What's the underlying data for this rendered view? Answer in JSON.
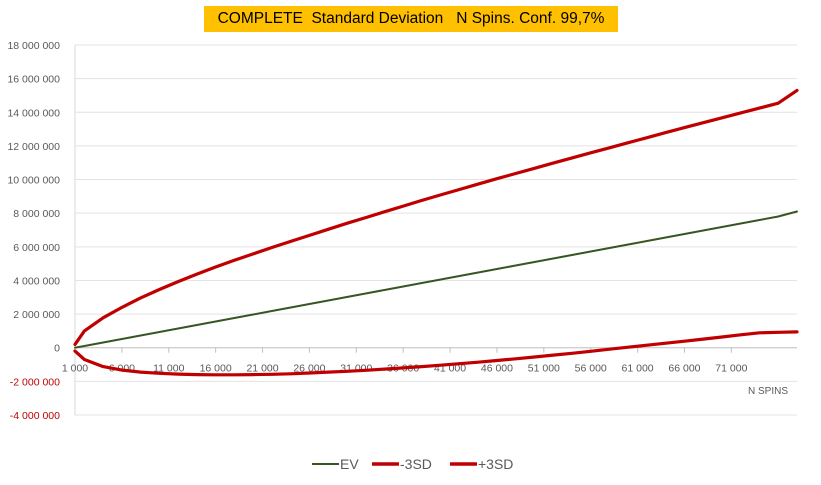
{
  "chart_data": {
    "type": "line",
    "title": "COMPLETE  Standard Deviation   N Spins. Conf. 99,7%",
    "xlabel": "N SPINS",
    "ylabel": "",
    "x_ticks": [
      "1 000",
      "6 000",
      "11 000",
      "16 000",
      "21 000",
      "26 000",
      "31 000",
      "36 000",
      "41 000",
      "46 000",
      "51 000",
      "56 000",
      "61 000",
      "66 000",
      "71 000"
    ],
    "y_ticks": [
      "18 000 000",
      "16 000 000",
      "14 000 000",
      "12 000 000",
      "10 000 000",
      "8 000 000",
      "6 000 000",
      "4 000 000",
      "2 000 000",
      "0",
      "-2 000 000",
      "-4 000 000"
    ],
    "xlim": [
      1000,
      78000
    ],
    "ylim": [
      -4000000,
      18000000
    ],
    "grid": true,
    "legend_position": "bottom",
    "x": [
      1000,
      2000,
      4000,
      6000,
      8000,
      10000,
      12000,
      14000,
      16000,
      18000,
      20000,
      22000,
      24000,
      26000,
      28000,
      30000,
      32000,
      34000,
      36000,
      38000,
      40000,
      42000,
      44000,
      46000,
      48000,
      50000,
      52000,
      54000,
      56000,
      58000,
      60000,
      62000,
      64000,
      66000,
      68000,
      70000,
      72000,
      74000,
      76000,
      78000
    ],
    "series": [
      {
        "name": "EV",
        "color": "#375623",
        "values": [
          0,
          104000,
          312000,
          520000,
          728000,
          936000,
          1144000,
          1352000,
          1560000,
          1768000,
          1976000,
          2184000,
          2392000,
          2600000,
          2808000,
          3016000,
          3224000,
          3432000,
          3640000,
          3848000,
          4056000,
          4264000,
          4472000,
          4680000,
          4888000,
          5096000,
          5304000,
          5512000,
          5720000,
          5928000,
          6136000,
          6344000,
          6552000,
          6760000,
          6968000,
          7176000,
          7384000,
          7592000,
          7800000,
          8100000
        ]
      },
      {
        "name": "-3SD",
        "color": "#c00000",
        "values": [
          -200000,
          -700000,
          -1120000,
          -1330000,
          -1450000,
          -1520000,
          -1570000,
          -1600000,
          -1610000,
          -1610000,
          -1600000,
          -1580000,
          -1550000,
          -1500000,
          -1450000,
          -1400000,
          -1340000,
          -1270000,
          -1200000,
          -1120000,
          -1040000,
          -950000,
          -860000,
          -760000,
          -660000,
          -550000,
          -440000,
          -330000,
          -210000,
          -90000,
          30000,
          150000,
          270000,
          390000,
          510000,
          640000,
          770000,
          890000,
          920000,
          940000
        ]
      },
      {
        "name": "+3SD",
        "color": "#c00000",
        "values": [
          200000,
          1000000,
          1780000,
          2400000,
          2960000,
          3460000,
          3930000,
          4380000,
          4800000,
          5200000,
          5580000,
          5960000,
          6320000,
          6680000,
          7040000,
          7400000,
          7740000,
          8080000,
          8420000,
          8760000,
          9090000,
          9410000,
          9730000,
          10050000,
          10360000,
          10670000,
          10980000,
          11290000,
          11590000,
          11890000,
          12190000,
          12490000,
          12790000,
          13090000,
          13380000,
          13670000,
          13960000,
          14250000,
          14540000,
          15300000
        ]
      }
    ]
  }
}
